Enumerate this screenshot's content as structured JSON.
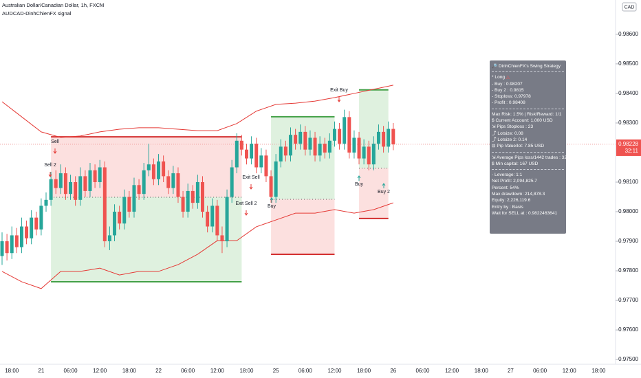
{
  "chart_data": {
    "type": "candlestick",
    "title": "Australian Dollar/Canadian Dollar, 1h, FXCM",
    "subtitle": "AUDCAD-DinhChienFX signal",
    "currency": "CAD",
    "ylim": [
      0.97484,
      0.98716
    ],
    "yticks": [
      {
        "value": 0.986,
        "label": "0.98600"
      },
      {
        "value": 0.985,
        "label": "0.98500"
      },
      {
        "value": 0.984,
        "label": "0.98400"
      },
      {
        "value": 0.983,
        "label": "0.98300"
      },
      {
        "value": 0.981,
        "label": "0.98100"
      },
      {
        "value": 0.98,
        "label": "0.98000"
      },
      {
        "value": 0.979,
        "label": "0.97900"
      },
      {
        "value": 0.978,
        "label": "0.97800"
      },
      {
        "value": 0.977,
        "label": "0.97700"
      },
      {
        "value": 0.976,
        "label": "0.97600"
      },
      {
        "value": 0.975,
        "label": "0.97500"
      }
    ],
    "x_tick_labels": [
      "18:00",
      "21",
      "06:00",
      "12:00",
      "18:00",
      "22",
      "06:00",
      "12:00",
      "18:00",
      "25",
      "06:00",
      "12:00",
      "18:00",
      "26",
      "06:00",
      "12:00",
      "18:00",
      "27",
      "06:00",
      "12:00",
      "18:00"
    ],
    "up_color": "#26a69a",
    "down_color": "#ef5350",
    "last_price": 0.98228,
    "countdown": "32:11",
    "candles": [
      [
        0.9785,
        0.9793,
        0.9782,
        0.979
      ],
      [
        0.979,
        0.97925,
        0.97835,
        0.9786
      ],
      [
        0.9786,
        0.9795,
        0.9784,
        0.9792
      ],
      [
        0.9792,
        0.97945,
        0.9786,
        0.9788
      ],
      [
        0.9788,
        0.9798,
        0.9786,
        0.9795
      ],
      [
        0.9795,
        0.9797,
        0.9789,
        0.9791
      ],
      [
        0.9791,
        0.98005,
        0.9789,
        0.9798
      ],
      [
        0.9798,
        0.98,
        0.9792,
        0.9794
      ],
      [
        0.9794,
        0.98045,
        0.9792,
        0.9802
      ],
      [
        0.9802,
        0.98065,
        0.98,
        0.9804
      ],
      [
        0.9804,
        0.98135,
        0.9802,
        0.9811
      ],
      [
        0.9811,
        0.9814,
        0.9806,
        0.9808
      ],
      [
        0.9808,
        0.9816,
        0.9806,
        0.9813
      ],
      [
        0.9813,
        0.9815,
        0.9804,
        0.9806
      ],
      [
        0.9806,
        0.98125,
        0.9804,
        0.981
      ],
      [
        0.981,
        0.9812,
        0.9802,
        0.9804
      ],
      [
        0.9804,
        0.9815,
        0.9802,
        0.9812
      ],
      [
        0.9812,
        0.9814,
        0.9805,
        0.9807
      ],
      [
        0.9807,
        0.98165,
        0.9805,
        0.9814
      ],
      [
        0.9814,
        0.9816,
        0.9808,
        0.981
      ],
      [
        0.981,
        0.98175,
        0.9808,
        0.9815
      ],
      [
        0.9815,
        0.9817,
        0.9788,
        0.979
      ],
      [
        0.979,
        0.9795,
        0.9787,
        0.9792
      ],
      [
        0.9792,
        0.98025,
        0.979,
        0.98
      ],
      [
        0.98,
        0.9802,
        0.9794,
        0.9796
      ],
      [
        0.9796,
        0.98075,
        0.9794,
        0.9805
      ],
      [
        0.9805,
        0.9807,
        0.9798,
        0.98
      ],
      [
        0.98,
        0.98115,
        0.9798,
        0.9809
      ],
      [
        0.9809,
        0.9811,
        0.9804,
        0.9806
      ],
      [
        0.9806,
        0.98165,
        0.9804,
        0.9814
      ],
      [
        0.9814,
        0.9823,
        0.9812,
        0.9816
      ],
      [
        0.9816,
        0.9818,
        0.9809,
        0.9811
      ],
      [
        0.9811,
        0.98195,
        0.9809,
        0.9817
      ],
      [
        0.9817,
        0.9819,
        0.981,
        0.9812
      ],
      [
        0.9812,
        0.9814,
        0.9806,
        0.9808
      ],
      [
        0.9808,
        0.98155,
        0.9806,
        0.9813
      ],
      [
        0.9813,
        0.9815,
        0.9803,
        0.9805
      ],
      [
        0.9805,
        0.9807,
        0.9798,
        0.98
      ],
      [
        0.98,
        0.98095,
        0.9798,
        0.9807
      ],
      [
        0.9807,
        0.9809,
        0.9801,
        0.9803
      ],
      [
        0.9803,
        0.98125,
        0.9801,
        0.981
      ],
      [
        0.981,
        0.9812,
        0.9798,
        0.98
      ],
      [
        0.98,
        0.9802,
        0.9793,
        0.9795
      ],
      [
        0.9795,
        0.98045,
        0.9793,
        0.9802
      ],
      [
        0.9802,
        0.9804,
        0.979,
        0.9792
      ],
      [
        0.9792,
        0.9795,
        0.9786,
        0.979
      ],
      [
        0.979,
        0.98075,
        0.9788,
        0.9805
      ],
      [
        0.9805,
        0.98175,
        0.9803,
        0.9815
      ],
      [
        0.9815,
        0.98265,
        0.9813,
        0.9824
      ],
      [
        0.9824,
        0.9826,
        0.9819,
        0.9821
      ],
      [
        0.9821,
        0.9823,
        0.9816,
        0.9818
      ],
      [
        0.9818,
        0.98255,
        0.9816,
        0.9823
      ],
      [
        0.9823,
        0.9825,
        0.9813,
        0.9815
      ],
      [
        0.9815,
        0.98215,
        0.9813,
        0.9819
      ],
      [
        0.9819,
        0.9821,
        0.981,
        0.9812
      ],
      [
        0.9812,
        0.9814,
        0.9803,
        0.9805
      ],
      [
        0.9805,
        0.98195,
        0.9803,
        0.9817
      ],
      [
        0.9817,
        0.98245,
        0.9815,
        0.9822
      ],
      [
        0.9822,
        0.9824,
        0.9817,
        0.9819
      ],
      [
        0.9819,
        0.98285,
        0.9817,
        0.9826
      ],
      [
        0.9826,
        0.9828,
        0.9821,
        0.9823
      ],
      [
        0.9823,
        0.98295,
        0.9821,
        0.9827
      ],
      [
        0.9827,
        0.9829,
        0.9819,
        0.9821
      ],
      [
        0.9821,
        0.98275,
        0.9819,
        0.9825
      ],
      [
        0.9825,
        0.9827,
        0.9817,
        0.9819
      ],
      [
        0.9819,
        0.98255,
        0.9817,
        0.9823
      ],
      [
        0.9823,
        0.9825,
        0.9818,
        0.982
      ],
      [
        0.982,
        0.98265,
        0.9818,
        0.9824
      ],
      [
        0.9824,
        0.98305,
        0.9822,
        0.9828
      ],
      [
        0.9828,
        0.983,
        0.9821,
        0.9823
      ],
      [
        0.9823,
        0.98345,
        0.9821,
        0.9832
      ],
      [
        0.9832,
        0.9834,
        0.9818,
        0.982
      ],
      [
        0.982,
        0.98275,
        0.9818,
        0.9825
      ],
      [
        0.9825,
        0.9827,
        0.9816,
        0.9818
      ],
      [
        0.9818,
        0.98245,
        0.9816,
        0.9822
      ],
      [
        0.9822,
        0.9824,
        0.9814,
        0.9816
      ],
      [
        0.9816,
        0.98255,
        0.9814,
        0.9823
      ],
      [
        0.9823,
        0.98295,
        0.9821,
        0.9827
      ],
      [
        0.9827,
        0.9829,
        0.982,
        0.9822
      ],
      [
        0.9822,
        0.98305,
        0.982,
        0.9828
      ],
      [
        0.9828,
        0.983,
        0.98208,
        0.98228
      ]
    ],
    "band_color": "#e53935",
    "band_x": [
      0,
      4,
      8,
      12,
      16,
      20,
      24,
      28,
      32,
      36,
      40,
      44,
      48,
      52,
      56,
      60,
      64,
      68,
      72,
      76,
      80
    ],
    "upper_band": {
      "values": [
        0.98372,
        0.98321,
        0.9827,
        0.98251,
        0.98256,
        0.9827,
        0.98279,
        0.98284,
        0.98284,
        0.98279,
        0.98274,
        0.98274,
        0.98298,
        0.9834,
        0.98363,
        0.98367,
        0.98374,
        0.98386,
        0.984,
        0.98414,
        0.98428
      ]
    },
    "lower_band": {
      "values": [
        0.97798,
        0.97763,
        0.9774,
        0.97798,
        0.97798,
        0.97809,
        0.97786,
        0.97798,
        0.97798,
        0.97821,
        0.97856,
        0.97902,
        0.97902,
        0.97949,
        0.97972,
        0.97995,
        0.97995,
        0.98007,
        0.97995,
        0.98007,
        0.9803
      ]
    },
    "zones": [
      {
        "side": "sell",
        "start": 10,
        "end": 49,
        "top": 0.98253,
        "entry": 0.98049,
        "bottom": 0.97763
      },
      {
        "side": "buy",
        "start": 55,
        "end": 68,
        "top": 0.98321,
        "entry": 0.98042,
        "bottom": 0.97856
      },
      {
        "side": "buy",
        "start": 73,
        "end": 79,
        "top": 0.98412,
        "entry": 0.98147,
        "bottom": 0.97977
      }
    ],
    "signals": [
      "Sell",
      "Sell 2",
      "Exit Sell",
      "Exit Sell 2",
      "Buy",
      "Exit Buy",
      "Buy",
      "Buy 2"
    ],
    "panel": {
      "title": "DinhChienFX's Swing Strategy",
      "sections": [
        [
          "* Long",
          "- Buy   : 0.98207",
          "- Buy 2  : 0.9815",
          "- Stoploss: 0.97978",
          "- Profit  : 0.98408"
        ],
        [
          "Max Risk: 1.5% | Risk/Reward: 1/1",
          "$ Current Account: 1,000 USD",
          "⇲ Pips Stoploss : 23",
          "⤴ Lotsize: 0.08",
          "⤴ Lotsize 2: 0.14",
          "⊟ Pip Value/lot: 7.85 USD"
        ],
        [
          "⇲ Average Pips loss/1442 trades : 32",
          "$ Min capital: 167 USD"
        ],
        [
          "- Leverage: 1:1",
          "Net Profit: 2,094,825.7",
          "Percent: 54%",
          "Max drawdown: 214,878.3",
          "Equity: 2,226,119.6",
          "Entry by : Basis",
          "Wait for SELL at : 0.9822463641"
        ]
      ]
    }
  }
}
